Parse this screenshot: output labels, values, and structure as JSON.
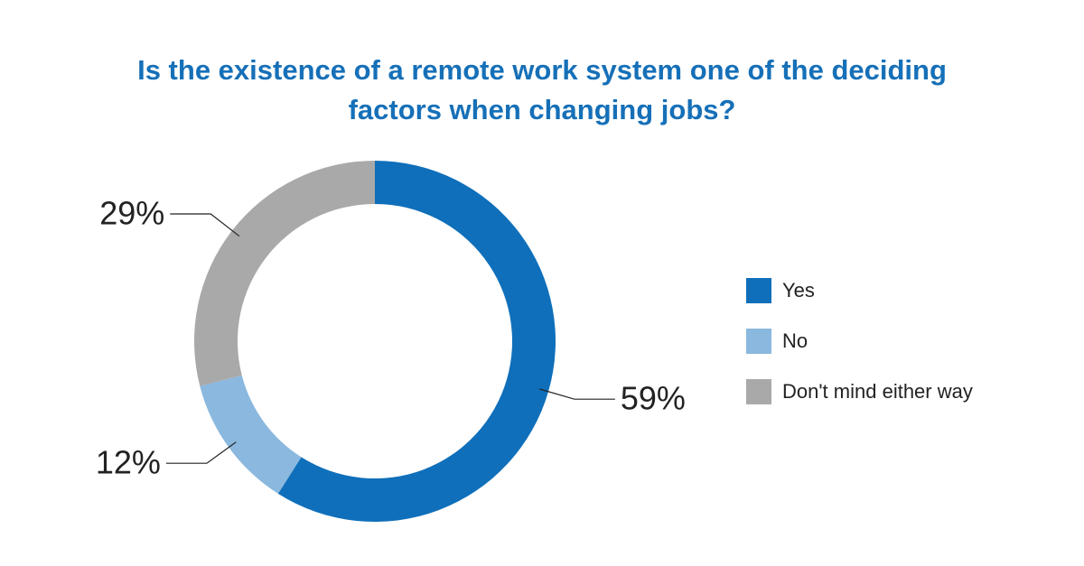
{
  "chart_data": {
    "type": "donut",
    "title": "Is the existence of a remote work system one of the deciding factors when changing jobs?",
    "categories": [
      "Yes",
      "No",
      "Don't mind either way"
    ],
    "values": [
      59,
      12,
      29
    ],
    "value_labels": [
      "59%",
      "12%",
      "29%"
    ],
    "colors": [
      "#0f6fba",
      "#8ab8de",
      "#a9a9a9"
    ],
    "legend": "right"
  }
}
